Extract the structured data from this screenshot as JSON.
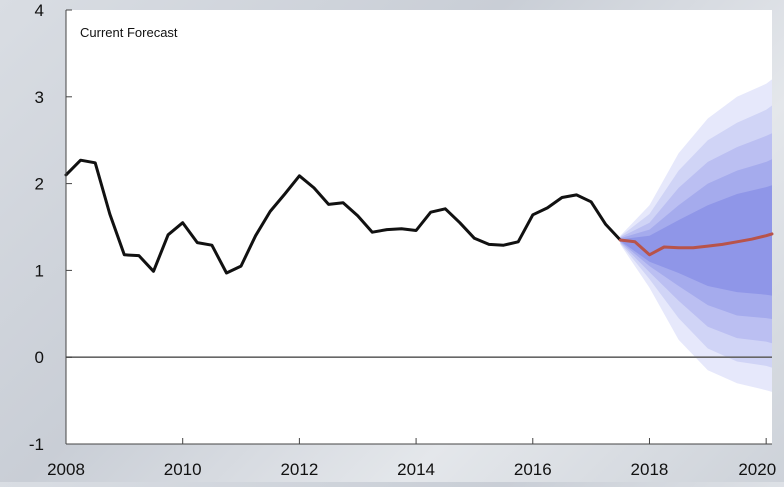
{
  "chart_data": {
    "type": "line",
    "title": "Current Forecast",
    "xlabel": "",
    "ylabel": "",
    "xlim": [
      2008,
      2020.1
    ],
    "ylim": [
      -1,
      4
    ],
    "x_ticks": [
      2008,
      2010,
      2012,
      2014,
      2016,
      2018,
      2020
    ],
    "x_tick_labels": [
      "2008",
      "2010",
      "2012",
      "2014",
      "2016",
      "2018",
      "2020"
    ],
    "y_ticks": [
      -1,
      0,
      1,
      2,
      3,
      4
    ],
    "y_tick_labels": [
      "-1",
      "0",
      "1",
      "2",
      "3",
      "4"
    ],
    "zero_line": true,
    "grid": false,
    "legend": "none",
    "colors": {
      "history": "#111111",
      "forecast": "#b8534a",
      "fan_inner": "#8f96e8",
      "fan_outer": "#e6e8fb",
      "axis": "#444444",
      "zero_line": "#666666"
    },
    "series": [
      {
        "role": "history",
        "x": [
          2008.0,
          2008.25,
          2008.5,
          2008.75,
          2009.0,
          2009.25,
          2009.5,
          2009.75,
          2010.0,
          2010.25,
          2010.5,
          2010.75,
          2011.0,
          2011.25,
          2011.5,
          2011.75,
          2012.0,
          2012.25,
          2012.5,
          2012.75,
          2013.0,
          2013.25,
          2013.5,
          2013.75,
          2014.0,
          2014.25,
          2014.5,
          2014.75,
          2015.0,
          2015.25,
          2015.5,
          2015.75,
          2016.0,
          2016.25,
          2016.5,
          2016.75,
          2017.0,
          2017.25,
          2017.5
        ],
        "y": [
          2.1,
          2.27,
          2.24,
          1.65,
          1.18,
          1.17,
          0.99,
          1.41,
          1.55,
          1.32,
          1.29,
          0.97,
          1.05,
          1.4,
          1.68,
          1.88,
          2.09,
          1.95,
          1.76,
          1.78,
          1.63,
          1.44,
          1.47,
          1.48,
          1.46,
          1.67,
          1.71,
          1.55,
          1.37,
          1.3,
          1.29,
          1.33,
          1.64,
          1.72,
          1.84,
          1.87,
          1.79,
          1.53,
          1.35
        ]
      },
      {
        "role": "forecast",
        "x": [
          2017.5,
          2017.75,
          2018.0,
          2018.25,
          2018.5,
          2018.75,
          2019.0,
          2019.25,
          2019.5,
          2019.75,
          2020.0,
          2020.1
        ],
        "y": [
          1.35,
          1.33,
          1.18,
          1.27,
          1.26,
          1.26,
          1.28,
          1.3,
          1.33,
          1.36,
          1.4,
          1.42
        ]
      }
    ],
    "fan_bands": {
      "x": [
        2017.5,
        2018.0,
        2018.5,
        2019.0,
        2019.5,
        2020.0,
        2020.1
      ],
      "bands": [
        {
          "lower": [
            1.3,
            0.8,
            0.2,
            -0.15,
            -0.3,
            -0.38,
            -0.4
          ],
          "upper": [
            1.4,
            1.75,
            2.35,
            2.75,
            3.0,
            3.15,
            3.2
          ]
        },
        {
          "lower": [
            1.31,
            0.9,
            0.45,
            0.1,
            -0.05,
            -0.1,
            -0.12
          ],
          "upper": [
            1.39,
            1.65,
            2.15,
            2.5,
            2.7,
            2.85,
            2.9
          ]
        },
        {
          "lower": [
            1.32,
            0.98,
            0.65,
            0.35,
            0.22,
            0.18,
            0.16
          ],
          "upper": [
            1.38,
            1.55,
            1.95,
            2.25,
            2.42,
            2.55,
            2.58
          ]
        },
        {
          "lower": [
            1.33,
            1.05,
            0.82,
            0.6,
            0.48,
            0.45,
            0.44
          ],
          "upper": [
            1.37,
            1.47,
            1.75,
            2.0,
            2.15,
            2.25,
            2.28
          ]
        },
        {
          "lower": [
            1.34,
            1.1,
            0.97,
            0.82,
            0.75,
            0.72,
            0.71
          ],
          "upper": [
            1.36,
            1.4,
            1.58,
            1.75,
            1.88,
            1.96,
            1.98
          ]
        }
      ]
    }
  }
}
